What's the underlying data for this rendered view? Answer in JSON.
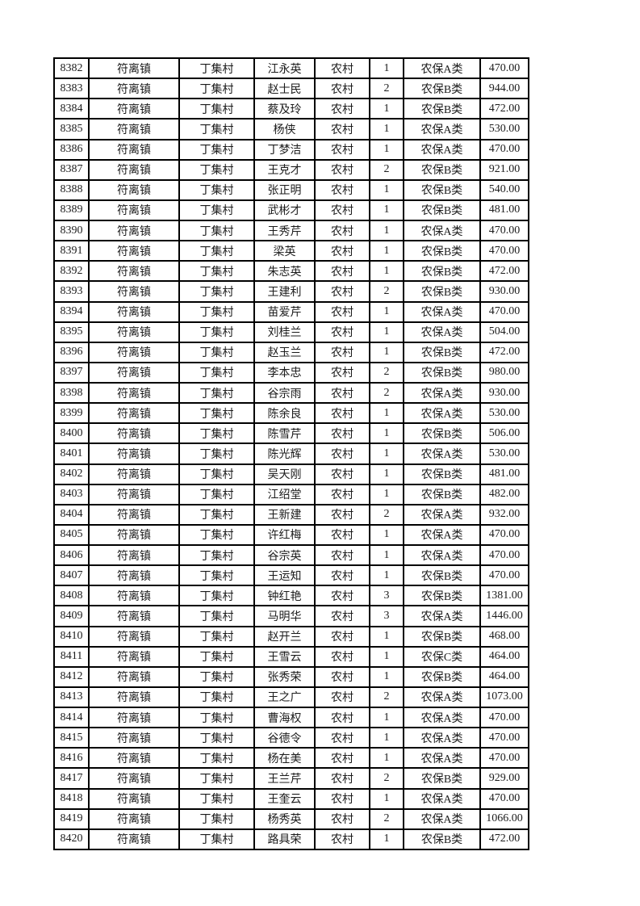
{
  "page": {
    "background_color": "#ffffff",
    "border_color": "#000000",
    "text_color": "#1c1c1c"
  },
  "table": {
    "columns": [
      {
        "key": 0,
        "name": "record-id-cell"
      },
      {
        "key": 1,
        "name": "town-cell"
      },
      {
        "key": 2,
        "name": "village-cell"
      },
      {
        "key": 3,
        "name": "person-name-cell"
      },
      {
        "key": 4,
        "name": "area-type-cell"
      },
      {
        "key": 5,
        "name": "person-count-cell"
      },
      {
        "key": 6,
        "name": "insurance-category-cell"
      },
      {
        "key": 7,
        "name": "amount-cell"
      }
    ],
    "rows": [
      [
        "8382",
        "符离镇",
        "丁集村",
        "江永英",
        "农村",
        "1",
        "农保A类",
        "470.00"
      ],
      [
        "8383",
        "符离镇",
        "丁集村",
        "赵士民",
        "农村",
        "2",
        "农保B类",
        "944.00"
      ],
      [
        "8384",
        "符离镇",
        "丁集村",
        "蔡及玲",
        "农村",
        "1",
        "农保B类",
        "472.00"
      ],
      [
        "8385",
        "符离镇",
        "丁集村",
        "杨侠",
        "农村",
        "1",
        "农保A类",
        "530.00"
      ],
      [
        "8386",
        "符离镇",
        "丁集村",
        "丁梦洁",
        "农村",
        "1",
        "农保A类",
        "470.00"
      ],
      [
        "8387",
        "符离镇",
        "丁集村",
        "王克才",
        "农村",
        "2",
        "农保B类",
        "921.00"
      ],
      [
        "8388",
        "符离镇",
        "丁集村",
        "张正明",
        "农村",
        "1",
        "农保B类",
        "540.00"
      ],
      [
        "8389",
        "符离镇",
        "丁集村",
        "武彬才",
        "农村",
        "1",
        "农保B类",
        "481.00"
      ],
      [
        "8390",
        "符离镇",
        "丁集村",
        "王秀芹",
        "农村",
        "1",
        "农保A类",
        "470.00"
      ],
      [
        "8391",
        "符离镇",
        "丁集村",
        "梁英",
        "农村",
        "1",
        "农保B类",
        "470.00"
      ],
      [
        "8392",
        "符离镇",
        "丁集村",
        "朱志英",
        "农村",
        "1",
        "农保B类",
        "472.00"
      ],
      [
        "8393",
        "符离镇",
        "丁集村",
        "王建利",
        "农村",
        "2",
        "农保B类",
        "930.00"
      ],
      [
        "8394",
        "符离镇",
        "丁集村",
        "苗爱芹",
        "农村",
        "1",
        "农保A类",
        "470.00"
      ],
      [
        "8395",
        "符离镇",
        "丁集村",
        "刘桂兰",
        "农村",
        "1",
        "农保A类",
        "504.00"
      ],
      [
        "8396",
        "符离镇",
        "丁集村",
        "赵玉兰",
        "农村",
        "1",
        "农保B类",
        "472.00"
      ],
      [
        "8397",
        "符离镇",
        "丁集村",
        "李本忠",
        "农村",
        "2",
        "农保B类",
        "980.00"
      ],
      [
        "8398",
        "符离镇",
        "丁集村",
        "谷宗雨",
        "农村",
        "2",
        "农保A类",
        "930.00"
      ],
      [
        "8399",
        "符离镇",
        "丁集村",
        "陈余良",
        "农村",
        "1",
        "农保A类",
        "530.00"
      ],
      [
        "8400",
        "符离镇",
        "丁集村",
        "陈雪芹",
        "农村",
        "1",
        "农保B类",
        "506.00"
      ],
      [
        "8401",
        "符离镇",
        "丁集村",
        "陈光辉",
        "农村",
        "1",
        "农保A类",
        "530.00"
      ],
      [
        "8402",
        "符离镇",
        "丁集村",
        "吴天刚",
        "农村",
        "1",
        "农保B类",
        "481.00"
      ],
      [
        "8403",
        "符离镇",
        "丁集村",
        "江绍堂",
        "农村",
        "1",
        "农保B类",
        "482.00"
      ],
      [
        "8404",
        "符离镇",
        "丁集村",
        "王新建",
        "农村",
        "2",
        "农保A类",
        "932.00"
      ],
      [
        "8405",
        "符离镇",
        "丁集村",
        "许红梅",
        "农村",
        "1",
        "农保A类",
        "470.00"
      ],
      [
        "8406",
        "符离镇",
        "丁集村",
        "谷宗英",
        "农村",
        "1",
        "农保A类",
        "470.00"
      ],
      [
        "8407",
        "符离镇",
        "丁集村",
        "王运知",
        "农村",
        "1",
        "农保B类",
        "470.00"
      ],
      [
        "8408",
        "符离镇",
        "丁集村",
        "钟红艳",
        "农村",
        "3",
        "农保B类",
        "1381.00"
      ],
      [
        "8409",
        "符离镇",
        "丁集村",
        "马明华",
        "农村",
        "3",
        "农保A类",
        "1446.00"
      ],
      [
        "8410",
        "符离镇",
        "丁集村",
        "赵开兰",
        "农村",
        "1",
        "农保B类",
        "468.00"
      ],
      [
        "8411",
        "符离镇",
        "丁集村",
        "王雪云",
        "农村",
        "1",
        "农保C类",
        "464.00"
      ],
      [
        "8412",
        "符离镇",
        "丁集村",
        "张秀荣",
        "农村",
        "1",
        "农保B类",
        "464.00"
      ],
      [
        "8413",
        "符离镇",
        "丁集村",
        "王之广",
        "农村",
        "2",
        "农保A类",
        "1073.00"
      ],
      [
        "8414",
        "符离镇",
        "丁集村",
        "曹海权",
        "农村",
        "1",
        "农保A类",
        "470.00"
      ],
      [
        "8415",
        "符离镇",
        "丁集村",
        "谷德令",
        "农村",
        "1",
        "农保A类",
        "470.00"
      ],
      [
        "8416",
        "符离镇",
        "丁集村",
        "杨在美",
        "农村",
        "1",
        "农保A类",
        "470.00"
      ],
      [
        "8417",
        "符离镇",
        "丁集村",
        "王兰芹",
        "农村",
        "2",
        "农保B类",
        "929.00"
      ],
      [
        "8418",
        "符离镇",
        "丁集村",
        "王奎云",
        "农村",
        "1",
        "农保A类",
        "470.00"
      ],
      [
        "8419",
        "符离镇",
        "丁集村",
        "杨秀英",
        "农村",
        "2",
        "农保A类",
        "1066.00"
      ],
      [
        "8420",
        "符离镇",
        "丁集村",
        "路具荣",
        "农村",
        "1",
        "农保B类",
        "472.00"
      ]
    ]
  }
}
